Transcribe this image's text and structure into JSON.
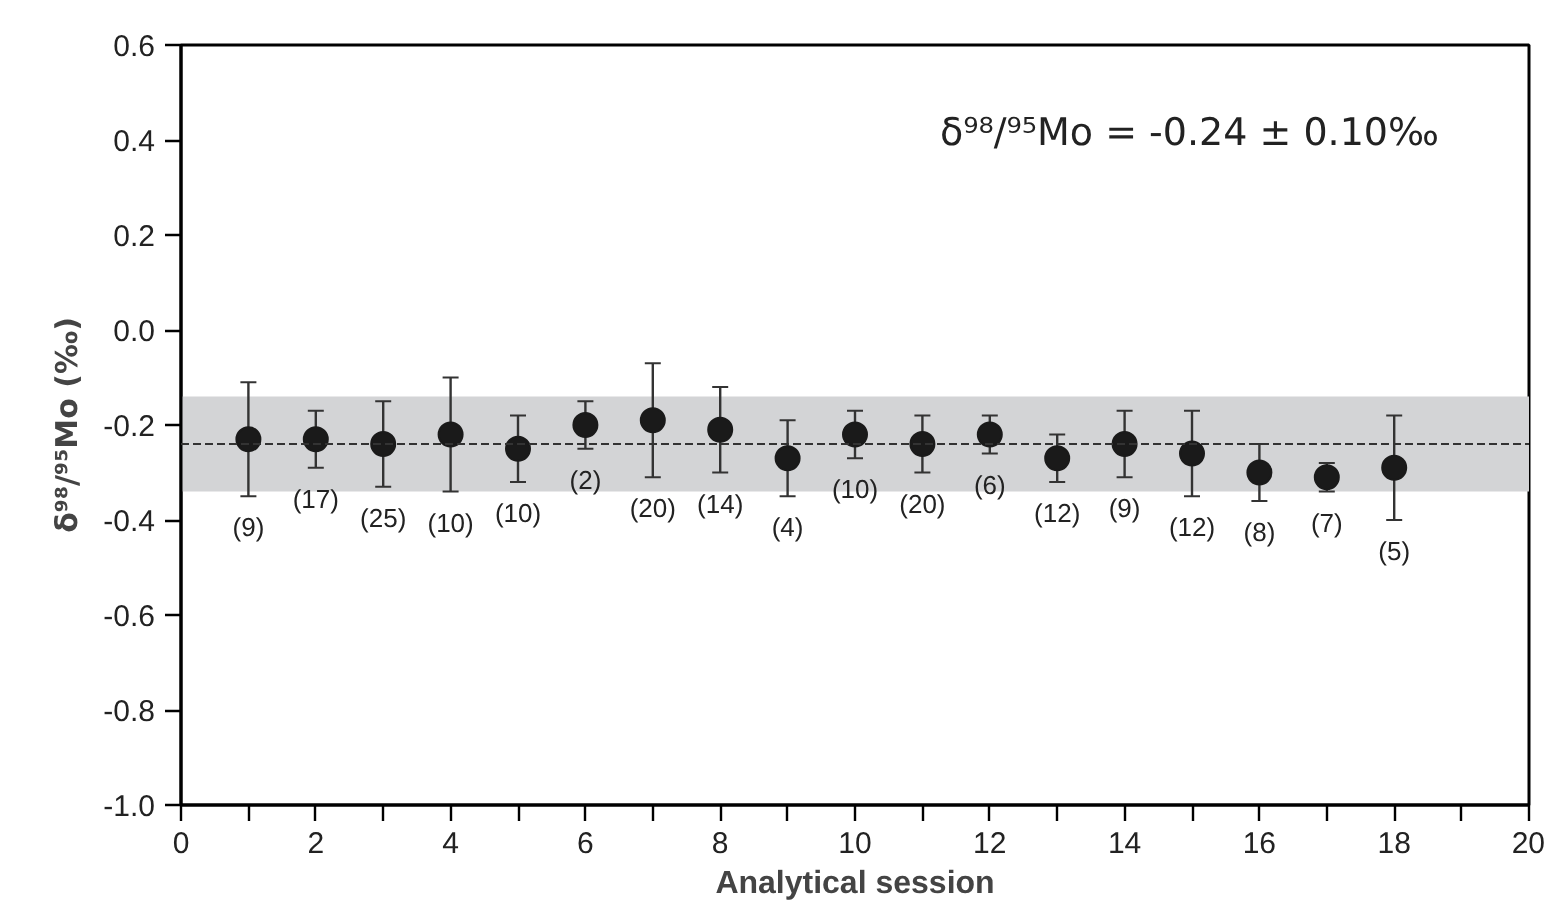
{
  "chart_data": {
    "type": "scatter",
    "xlabel": "Analytical session",
    "ylabel": "δ⁹⁸/⁹⁵Mo (‰)",
    "x": [
      1,
      2,
      3,
      4,
      5,
      6,
      7,
      8,
      9,
      10,
      11,
      12,
      13,
      14,
      15,
      16,
      17,
      18
    ],
    "values": [
      -0.23,
      -0.23,
      -0.24,
      -0.22,
      -0.25,
      -0.2,
      -0.19,
      -0.21,
      -0.27,
      -0.22,
      -0.24,
      -0.22,
      -0.27,
      -0.24,
      -0.26,
      -0.3,
      -0.31,
      -0.29
    ],
    "errors": [
      0.12,
      0.06,
      0.09,
      0.12,
      0.07,
      0.05,
      0.12,
      0.09,
      0.08,
      0.05,
      0.06,
      0.04,
      0.05,
      0.07,
      0.09,
      0.06,
      0.03,
      0.11
    ],
    "color": "#1a1a1a",
    "marker": "circle",
    "grid": false,
    "xlim": [
      0,
      20
    ],
    "ylim": [
      -1.0,
      0.6
    ],
    "xticks": [
      0,
      {
        "value": 1,
        "label": null
      },
      2,
      {
        "value": 3,
        "label": null
      },
      4,
      {
        "value": 5,
        "label": null
      },
      6,
      {
        "value": 7,
        "label": null
      },
      8,
      {
        "value": 9,
        "label": null
      },
      10,
      {
        "value": 11,
        "label": null
      },
      12,
      {
        "value": 13,
        "label": null
      },
      14,
      {
        "value": 15,
        "label": null
      },
      16,
      {
        "value": 17,
        "label": null
      },
      18,
      {
        "value": 19,
        "label": null
      },
      20
    ],
    "yticks": [
      {
        "value": -1.0,
        "label": "-1.0"
      },
      -0.8,
      -0.6,
      -0.4,
      -0.2,
      {
        "value": 0,
        "label": "0.0"
      },
      0.2,
      0.4,
      0.6
    ],
    "ref_lines": [
      {
        "axis": "y",
        "value": -0.24,
        "label": null,
        "color": "#333333",
        "line_style": "dashed"
      }
    ],
    "bands": [
      {
        "axis": "y",
        "from": -0.34,
        "to": -0.14,
        "label": null,
        "color": "#d3d4d6"
      }
    ],
    "annotations": [
      "δ⁹⁸/⁹⁵Mo = -0.24 ± 0.10‰",
      "(9)",
      "(17)",
      "(25)",
      "(10)",
      "(10)",
      "(2)",
      "(20)",
      "(14)",
      "(4)",
      "(10)",
      "(20)",
      "(6)",
      "(12)",
      "(9)",
      "(12)",
      "(8)",
      "(7)",
      "(5)"
    ]
  }
}
